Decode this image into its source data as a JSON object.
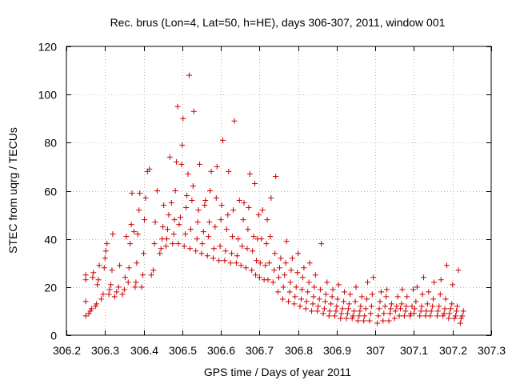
{
  "chart_data": {
    "type": "scatter",
    "title": "Rec. brus (Lon=4, Lat=50, h=HE), days 306-307, 2011, window 001",
    "xlabel": "GPS time / Days of year 2011",
    "ylabel": "STEC from uqrg / TECUs",
    "xlim": [
      306.2,
      307.3
    ],
    "ylim": [
      0,
      120
    ],
    "x_ticks": [
      "306.2",
      "306.3",
      "306.4",
      "306.5",
      "306.6",
      "306.7",
      "306.8",
      "306.9",
      "307",
      "307.1",
      "307.2",
      "307.3"
    ],
    "y_ticks": [
      "0",
      "20",
      "40",
      "60",
      "80",
      "100",
      "120"
    ],
    "grid": true,
    "marker": "+",
    "color": "#cc0000",
    "points": [
      [
        306.25,
        8
      ],
      [
        306.25,
        14
      ],
      [
        306.25,
        23
      ],
      [
        306.25,
        25
      ],
      [
        306.258,
        9
      ],
      [
        306.262,
        10
      ],
      [
        306.265,
        11
      ],
      [
        306.268,
        24
      ],
      [
        306.27,
        26
      ],
      [
        306.275,
        12
      ],
      [
        306.278,
        13
      ],
      [
        306.28,
        21
      ],
      [
        306.283,
        23
      ],
      [
        306.285,
        29
      ],
      [
        306.29,
        15
      ],
      [
        306.295,
        17
      ],
      [
        306.298,
        28
      ],
      [
        306.3,
        32
      ],
      [
        306.302,
        35
      ],
      [
        306.305,
        38
      ],
      [
        306.31,
        17
      ],
      [
        306.312,
        19
      ],
      [
        306.315,
        21
      ],
      [
        306.318,
        27
      ],
      [
        306.32,
        42
      ],
      [
        306.325,
        16
      ],
      [
        306.33,
        18
      ],
      [
        306.335,
        20
      ],
      [
        306.338,
        29
      ],
      [
        306.345,
        17
      ],
      [
        306.35,
        19
      ],
      [
        306.352,
        24
      ],
      [
        306.355,
        41
      ],
      [
        306.36,
        22
      ],
      [
        306.362,
        28
      ],
      [
        306.365,
        38
      ],
      [
        306.368,
        46
      ],
      [
        306.37,
        59
      ],
      [
        306.375,
        43
      ],
      [
        306.378,
        20
      ],
      [
        306.38,
        22
      ],
      [
        306.382,
        30
      ],
      [
        306.385,
        42
      ],
      [
        306.388,
        52
      ],
      [
        306.39,
        59
      ],
      [
        306.395,
        20
      ],
      [
        306.398,
        25
      ],
      [
        306.4,
        34
      ],
      [
        306.402,
        48
      ],
      [
        306.405,
        57
      ],
      [
        306.41,
        68
      ],
      [
        306.415,
        69
      ],
      [
        306.42,
        25
      ],
      [
        306.425,
        27
      ],
      [
        306.428,
        38
      ],
      [
        306.43,
        47
      ],
      [
        306.435,
        60
      ],
      [
        306.442,
        34
      ],
      [
        306.445,
        36
      ],
      [
        306.448,
        40
      ],
      [
        306.45,
        45
      ],
      [
        306.452,
        54
      ],
      [
        306.458,
        37
      ],
      [
        306.46,
        40
      ],
      [
        306.462,
        44
      ],
      [
        306.465,
        50
      ],
      [
        306.468,
        74
      ],
      [
        306.472,
        55
      ],
      [
        306.475,
        38
      ],
      [
        306.478,
        42
      ],
      [
        306.48,
        48
      ],
      [
        306.482,
        60
      ],
      [
        306.485,
        72
      ],
      [
        306.488,
        95
      ],
      [
        306.49,
        38
      ],
      [
        306.492,
        46
      ],
      [
        306.495,
        49
      ],
      [
        306.498,
        71
      ],
      [
        306.5,
        79
      ],
      [
        306.502,
        90
      ],
      [
        306.505,
        37
      ],
      [
        306.508,
        42
      ],
      [
        306.51,
        53
      ],
      [
        306.512,
        58
      ],
      [
        306.515,
        67
      ],
      [
        306.518,
        108
      ],
      [
        306.52,
        36
      ],
      [
        306.522,
        44
      ],
      [
        306.525,
        56
      ],
      [
        306.528,
        62
      ],
      [
        306.53,
        93
      ],
      [
        306.535,
        35
      ],
      [
        306.538,
        40
      ],
      [
        306.54,
        47
      ],
      [
        306.542,
        52
      ],
      [
        306.545,
        71
      ],
      [
        306.55,
        34
      ],
      [
        306.552,
        38
      ],
      [
        306.555,
        43
      ],
      [
        306.558,
        54
      ],
      [
        306.56,
        56
      ],
      [
        306.565,
        33
      ],
      [
        306.568,
        41
      ],
      [
        306.57,
        47
      ],
      [
        306.572,
        60
      ],
      [
        306.575,
        68
      ],
      [
        306.58,
        32
      ],
      [
        306.582,
        36
      ],
      [
        306.585,
        45
      ],
      [
        306.588,
        57
      ],
      [
        306.59,
        70
      ],
      [
        306.595,
        31
      ],
      [
        306.598,
        37
      ],
      [
        306.6,
        48
      ],
      [
        306.602,
        54
      ],
      [
        306.605,
        81
      ],
      [
        306.61,
        31
      ],
      [
        306.612,
        35
      ],
      [
        306.615,
        44
      ],
      [
        306.618,
        50
      ],
      [
        306.62,
        68
      ],
      [
        306.625,
        30
      ],
      [
        306.628,
        34
      ],
      [
        306.63,
        41
      ],
      [
        306.632,
        52
      ],
      [
        306.635,
        89
      ],
      [
        306.64,
        30
      ],
      [
        306.642,
        33
      ],
      [
        306.645,
        40
      ],
      [
        306.648,
        56
      ],
      [
        306.652,
        29
      ],
      [
        306.655,
        37
      ],
      [
        306.658,
        48
      ],
      [
        306.66,
        55
      ],
      [
        306.665,
        28
      ],
      [
        306.668,
        36
      ],
      [
        306.67,
        44
      ],
      [
        306.672,
        53
      ],
      [
        306.675,
        67
      ],
      [
        306.68,
        27
      ],
      [
        306.682,
        35
      ],
      [
        306.685,
        41
      ],
      [
        306.688,
        63
      ],
      [
        306.69,
        25
      ],
      [
        306.692,
        31
      ],
      [
        306.695,
        40
      ],
      [
        306.698,
        50
      ],
      [
        306.7,
        24
      ],
      [
        306.702,
        30
      ],
      [
        306.705,
        40
      ],
      [
        306.708,
        52
      ],
      [
        306.712,
        23
      ],
      [
        306.715,
        29
      ],
      [
        306.718,
        38
      ],
      [
        306.72,
        48
      ],
      [
        306.722,
        23
      ],
      [
        306.725,
        30
      ],
      [
        306.728,
        41
      ],
      [
        306.73,
        57
      ],
      [
        306.735,
        22
      ],
      [
        306.738,
        27
      ],
      [
        306.74,
        34
      ],
      [
        306.742,
        66
      ],
      [
        306.748,
        18
      ],
      [
        306.75,
        24
      ],
      [
        306.752,
        28
      ],
      [
        306.755,
        32
      ],
      [
        306.76,
        15
      ],
      [
        306.762,
        20
      ],
      [
        306.765,
        25
      ],
      [
        306.768,
        30
      ],
      [
        306.77,
        39
      ],
      [
        306.775,
        14
      ],
      [
        306.778,
        18
      ],
      [
        306.78,
        22
      ],
      [
        306.782,
        27
      ],
      [
        306.785,
        32
      ],
      [
        306.79,
        13
      ],
      [
        306.792,
        16
      ],
      [
        306.795,
        20
      ],
      [
        306.798,
        26
      ],
      [
        306.8,
        34
      ],
      [
        306.805,
        12
      ],
      [
        306.808,
        15
      ],
      [
        306.81,
        19
      ],
      [
        306.812,
        24
      ],
      [
        306.815,
        28
      ],
      [
        306.82,
        11
      ],
      [
        306.822,
        14
      ],
      [
        306.825,
        18
      ],
      [
        306.828,
        22
      ],
      [
        306.83,
        30
      ],
      [
        306.835,
        10
      ],
      [
        306.838,
        13
      ],
      [
        306.84,
        16
      ],
      [
        306.842,
        20
      ],
      [
        306.845,
        25
      ],
      [
        306.85,
        10
      ],
      [
        306.852,
        12
      ],
      [
        306.855,
        15
      ],
      [
        306.858,
        19
      ],
      [
        306.86,
        38
      ],
      [
        306.865,
        9
      ],
      [
        306.868,
        11
      ],
      [
        306.87,
        14
      ],
      [
        306.872,
        17
      ],
      [
        306.875,
        22
      ],
      [
        306.88,
        8
      ],
      [
        306.882,
        10
      ],
      [
        306.885,
        13
      ],
      [
        306.888,
        16
      ],
      [
        306.89,
        19
      ],
      [
        306.895,
        8
      ],
      [
        306.898,
        10
      ],
      [
        306.9,
        12
      ],
      [
        306.902,
        15
      ],
      [
        306.905,
        21
      ],
      [
        306.91,
        7
      ],
      [
        306.912,
        9
      ],
      [
        306.915,
        11
      ],
      [
        306.918,
        14
      ],
      [
        306.92,
        18
      ],
      [
        306.925,
        7
      ],
      [
        306.928,
        9
      ],
      [
        306.93,
        11
      ],
      [
        306.932,
        13
      ],
      [
        306.935,
        17
      ],
      [
        306.94,
        7
      ],
      [
        306.942,
        8
      ],
      [
        306.945,
        10
      ],
      [
        306.948,
        14
      ],
      [
        306.95,
        20
      ],
      [
        306.955,
        6
      ],
      [
        306.958,
        8
      ],
      [
        306.96,
        10
      ],
      [
        306.962,
        12
      ],
      [
        306.965,
        16
      ],
      [
        306.97,
        6
      ],
      [
        306.972,
        8
      ],
      [
        306.975,
        11
      ],
      [
        306.978,
        15
      ],
      [
        306.98,
        22
      ],
      [
        306.985,
        6
      ],
      [
        306.988,
        9
      ],
      [
        306.99,
        12
      ],
      [
        306.992,
        17
      ],
      [
        306.995,
        24
      ],
      [
        307.005,
        5
      ],
      [
        307.008,
        8
      ],
      [
        307.01,
        11
      ],
      [
        307.012,
        14
      ],
      [
        307.015,
        18
      ],
      [
        307.02,
        6
      ],
      [
        307.022,
        9
      ],
      [
        307.025,
        12
      ],
      [
        307.028,
        16
      ],
      [
        307.03,
        19
      ],
      [
        307.035,
        6
      ],
      [
        307.038,
        9
      ],
      [
        307.04,
        11
      ],
      [
        307.042,
        13
      ],
      [
        307.05,
        7
      ],
      [
        307.052,
        10
      ],
      [
        307.055,
        12
      ],
      [
        307.058,
        16
      ],
      [
        307.062,
        8
      ],
      [
        307.065,
        11
      ],
      [
        307.068,
        13
      ],
      [
        307.07,
        19
      ],
      [
        307.075,
        8
      ],
      [
        307.078,
        10
      ],
      [
        307.08,
        12
      ],
      [
        307.082,
        16
      ],
      [
        307.09,
        8
      ],
      [
        307.092,
        9
      ],
      [
        307.095,
        12
      ],
      [
        307.098,
        19
      ],
      [
        307.1,
        9
      ],
      [
        307.102,
        11
      ],
      [
        307.105,
        14
      ],
      [
        307.108,
        20
      ],
      [
        307.115,
        8
      ],
      [
        307.118,
        10
      ],
      [
        307.12,
        12
      ],
      [
        307.122,
        17
      ],
      [
        307.125,
        24
      ],
      [
        307.13,
        8
      ],
      [
        307.132,
        10
      ],
      [
        307.135,
        13
      ],
      [
        307.138,
        18
      ],
      [
        307.142,
        8
      ],
      [
        307.145,
        10
      ],
      [
        307.148,
        12
      ],
      [
        307.15,
        15
      ],
      [
        307.152,
        22
      ],
      [
        307.16,
        8
      ],
      [
        307.162,
        10
      ],
      [
        307.165,
        12
      ],
      [
        307.168,
        17
      ],
      [
        307.17,
        23
      ],
      [
        307.175,
        8
      ],
      [
        307.178,
        9
      ],
      [
        307.18,
        11
      ],
      [
        307.182,
        15
      ],
      [
        307.185,
        29
      ],
      [
        307.19,
        7
      ],
      [
        307.192,
        9
      ],
      [
        307.195,
        11
      ],
      [
        307.198,
        13
      ],
      [
        307.2,
        21
      ],
      [
        307.205,
        7
      ],
      [
        307.208,
        8
      ],
      [
        307.21,
        10
      ],
      [
        307.212,
        12
      ],
      [
        307.215,
        27
      ],
      [
        307.22,
        5
      ],
      [
        307.222,
        7
      ],
      [
        307.225,
        8
      ],
      [
        307.228,
        10
      ]
    ]
  }
}
